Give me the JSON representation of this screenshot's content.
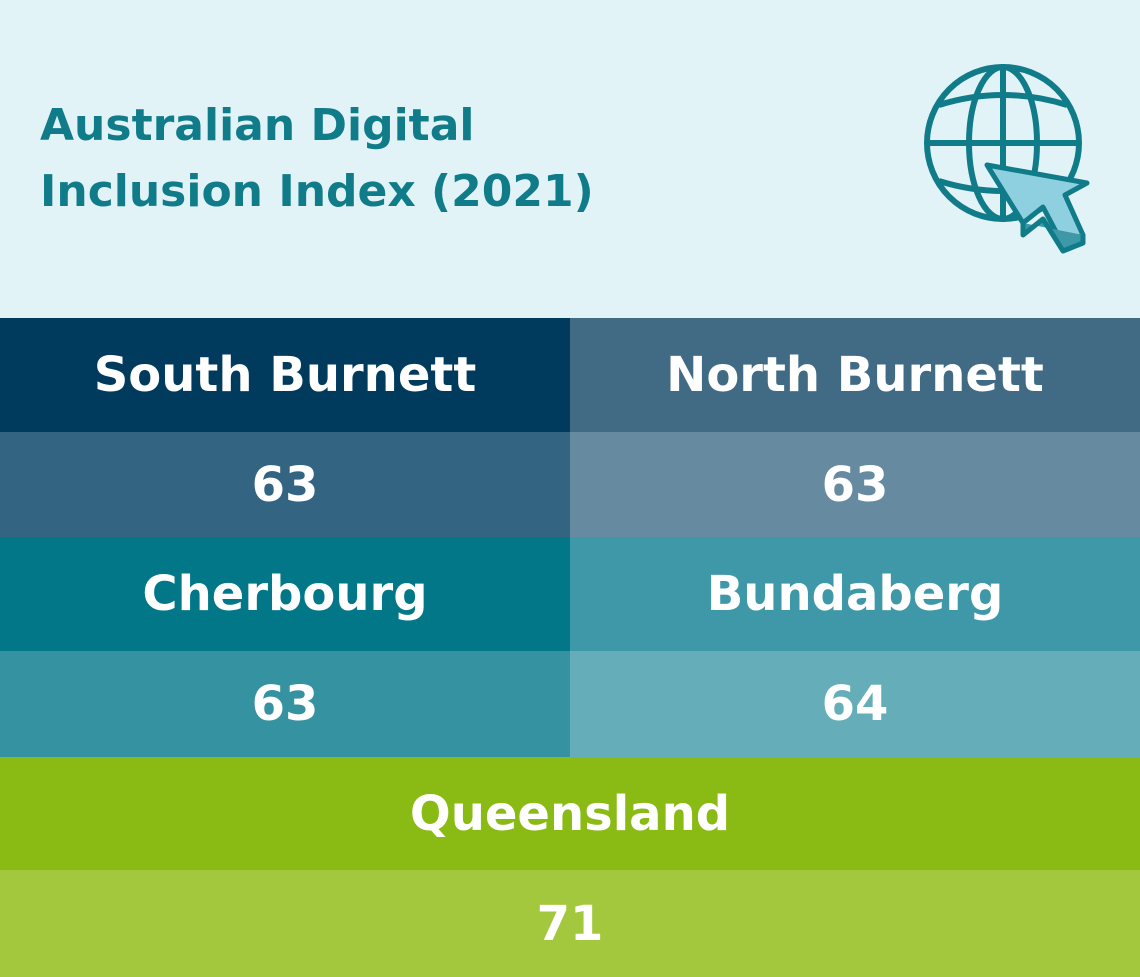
{
  "header": {
    "title_lines": [
      "Australian Digital",
      "Inclusion Index (2021)"
    ]
  },
  "regions": [
    {
      "name": "South Burnett",
      "value": 63
    },
    {
      "name": "North Burnett",
      "value": 63
    },
    {
      "name": "Cherbourg",
      "value": 63
    },
    {
      "name": "Bundaberg",
      "value": 64
    },
    {
      "name": "Queensland",
      "value": 71
    }
  ]
}
